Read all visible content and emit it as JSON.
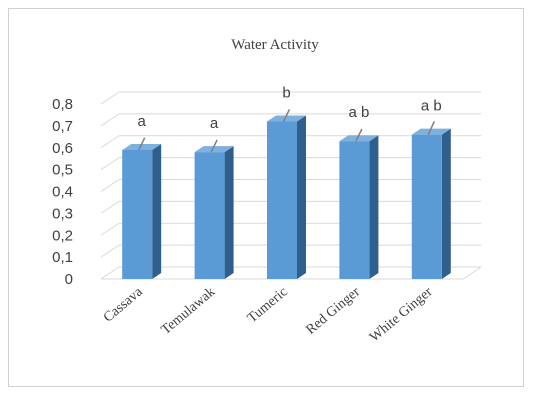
{
  "chart_data": {
    "type": "bar",
    "title": "Water Activity",
    "categories": [
      "Cassava",
      "Temulawak",
      "Tumeric",
      "Red Ginger",
      "White Ginger"
    ],
    "values": [
      0.59,
      0.58,
      0.72,
      0.63,
      0.66
    ],
    "error": [
      0.01,
      0.01,
      0.01,
      0.01,
      0.015
    ],
    "annotations": [
      "a",
      "a",
      "b",
      "a b",
      "a b"
    ],
    "ylim": [
      0,
      0.8
    ],
    "yticks": [
      "0",
      "0,1",
      "0,2",
      "0,3",
      "0,4",
      "0,5",
      "0,6",
      "0,7",
      "0,8"
    ],
    "grid": true,
    "legend": "none",
    "xlabel": "",
    "ylabel": "",
    "colors": {
      "bar_front": "#5b9bd5",
      "bar_side": "#2f5f8c",
      "bar_top": "#7eb1e0",
      "grid": "#d9d9d9",
      "error_bar": "#7f7f7f"
    }
  }
}
